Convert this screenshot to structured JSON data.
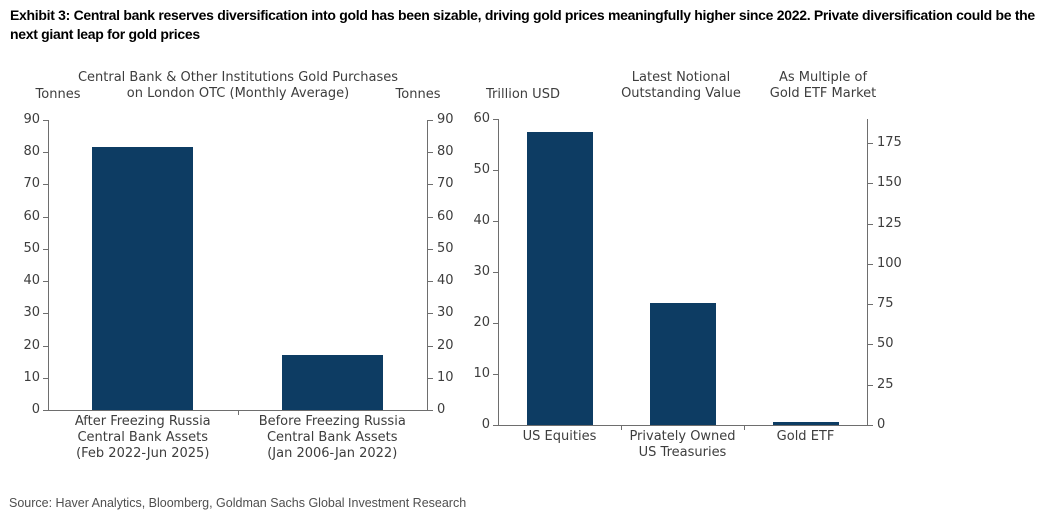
{
  "exhibit": {
    "title": "Exhibit 3: Central bank reserves diversification into gold has been sizable, driving gold prices meaningfully higher since 2022. Private diversification could be the next giant leap for gold prices",
    "source": "Source: Haver Analytics, Bloomberg, Goldman Sachs Global Investment Research"
  },
  "colors": {
    "bar": "#0d3c63",
    "axis": "#6e6e6e",
    "tick_text": "#3d3d3d",
    "title_text": "#000000",
    "source_text": "#4f4f4f"
  },
  "chart_data": [
    {
      "id": "chart-central-bank-gold-purchases",
      "type": "bar",
      "title_lines": [
        "Central Bank & Other Institutions Gold Purchases",
        "on London OTC (Monthly Average)"
      ],
      "left_axis_label_lines": [
        "Tonnes"
      ],
      "right_axis_label_lines": [
        "Tonnes"
      ],
      "categories": [
        [
          "After Freezing Russia",
          "Central Bank Assets",
          "(Feb 2022-Jun 2025)"
        ],
        [
          "Before Freezing Russia",
          "Central Bank Assets",
          "(Jan 2006-Jan 2022)"
        ]
      ],
      "values": [
        81.5,
        17
      ],
      "ylim": [
        0,
        90
      ],
      "yticks_left": [
        0,
        10,
        20,
        30,
        40,
        50,
        60,
        70,
        80,
        90
      ],
      "right_ylim": [
        0,
        90
      ],
      "yticks_right": [
        0,
        10,
        20,
        30,
        40,
        50,
        60,
        70,
        80,
        90
      ],
      "grid": false,
      "legend": "none"
    },
    {
      "id": "chart-notional-outstanding-value",
      "type": "bar",
      "title_lines": [
        "Latest Notional",
        "Outstanding Value"
      ],
      "left_axis_label_lines": [
        "Trillion USD"
      ],
      "right_axis_label_lines": [
        "As Multiple of",
        "Gold ETF Market"
      ],
      "categories": [
        [
          "US Equities"
        ],
        [
          "Privately Owned",
          "US Treasuries"
        ],
        [
          "Gold ETF"
        ]
      ],
      "values": [
        57.5,
        24,
        0.5
      ],
      "ylim": [
        0,
        60
      ],
      "yticks_left": [
        0,
        10,
        20,
        30,
        40,
        50,
        60
      ],
      "right_ylim": [
        0,
        190
      ],
      "yticks_right": [
        0,
        25,
        50,
        75,
        100,
        125,
        150,
        175
      ],
      "grid": false,
      "legend": "none"
    }
  ]
}
